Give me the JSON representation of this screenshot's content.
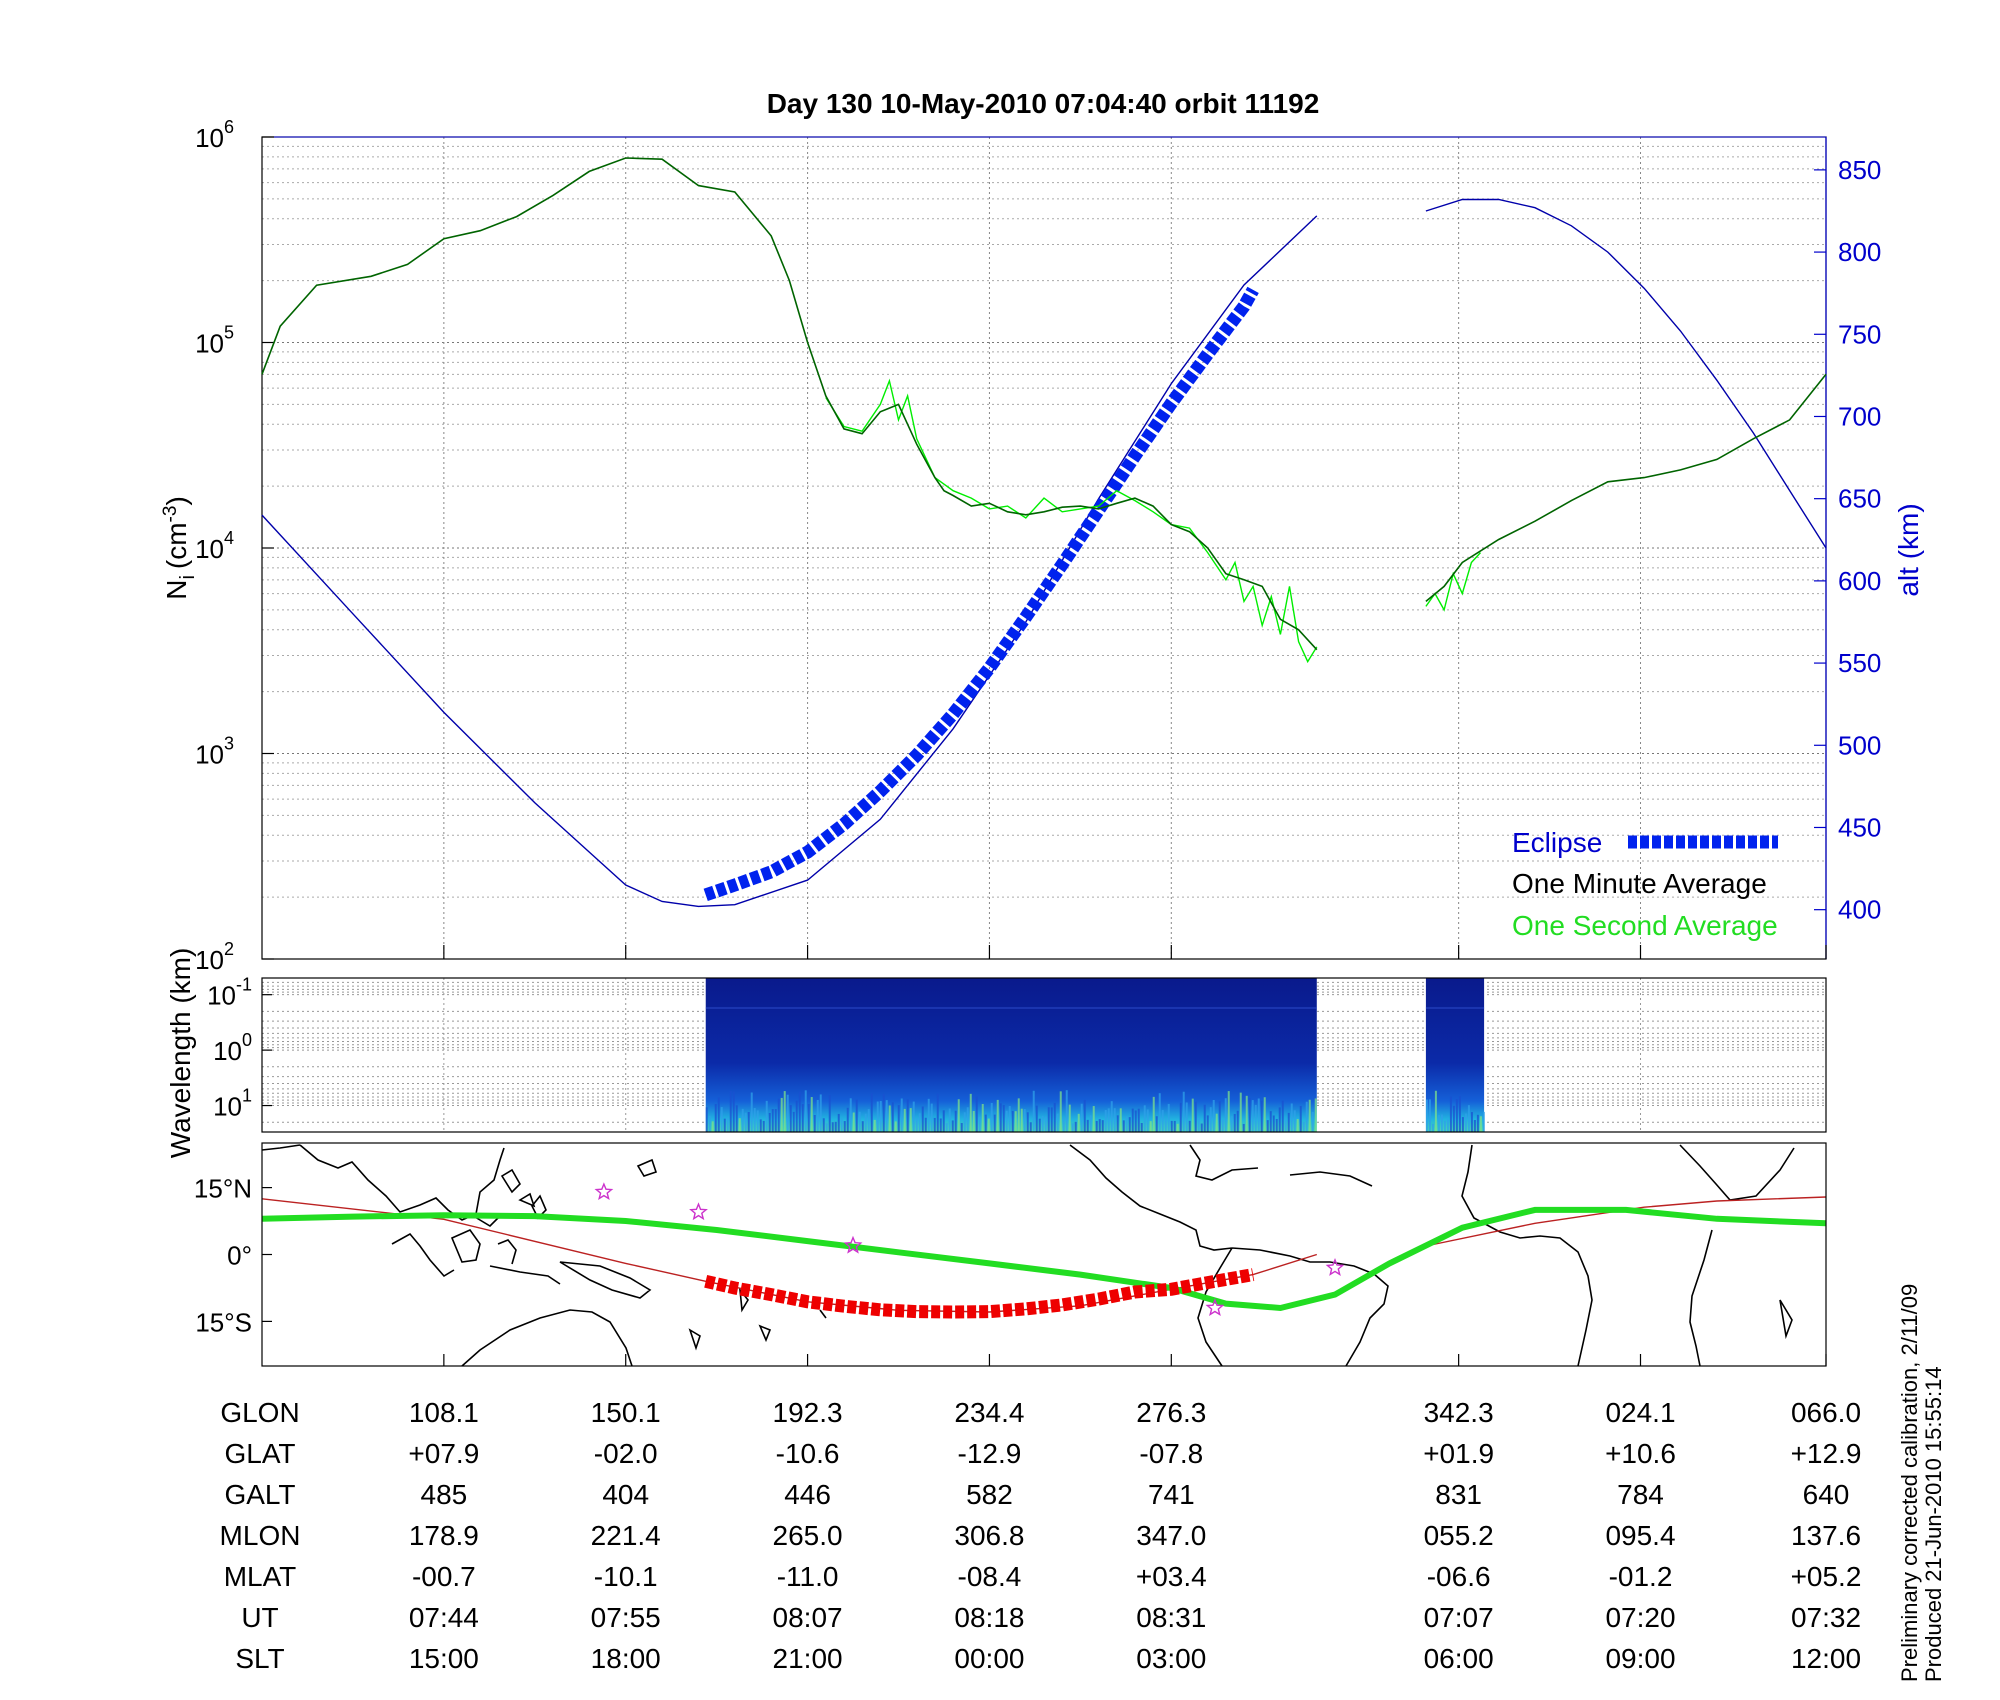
{
  "title": "Day 130  10-May-2010 07:04:40   orbit 11192",
  "side_note": {
    "line1": "Preliminary corrected calibration, 2/11/09",
    "line2": "Produced 21-Jun-2010 15:55:14"
  },
  "colors": {
    "minute_average": "#006400",
    "second_average": "#00ee00",
    "altitude": "#0000aa",
    "eclipse": "#0022ee",
    "eclipse_track": "#ee0000",
    "spectrogram_bg": "#0a1a8c",
    "stars": "#cc33cc"
  },
  "chart_data": [
    {
      "type": "line",
      "name": "ion-density-panel",
      "ylabel": "N",
      "ylabel_sub": "i",
      "ylabel_unit": "(cm",
      "ylabel_exp": "-3",
      "ylabel_close": ")",
      "ylabel_right": "alt (km)",
      "yscale": "log",
      "ylim": [
        100,
        1000000
      ],
      "y_ticks": [
        {
          "base": "10",
          "exp": "2",
          "value": 100
        },
        {
          "base": "10",
          "exp": "3",
          "value": 1000
        },
        {
          "base": "10",
          "exp": "4",
          "value": 10000
        },
        {
          "base": "10",
          "exp": "5",
          "value": 100000
        },
        {
          "base": "10",
          "exp": "6",
          "value": 1000000
        }
      ],
      "y2lim": [
        370,
        870
      ],
      "y2_ticks": [
        "400",
        "450",
        "500",
        "550",
        "600",
        "650",
        "700",
        "750",
        "800",
        "850"
      ],
      "xlim": [
        0,
        86
      ],
      "grid": true,
      "legend_position": "bottom-right",
      "legend": [
        {
          "label": "Eclipse",
          "color": "#0022ee"
        },
        {
          "label": "One Minute Average",
          "color": "#000000"
        },
        {
          "label": "One Second Average",
          "color": "#00ee00"
        }
      ],
      "series": [
        {
          "name": "One Minute Average",
          "segments": [
            {
              "x": [
                0,
                1,
                3,
                6,
                8,
                10,
                12,
                14,
                16,
                18,
                20,
                22,
                24,
                26,
                28,
                29,
                30,
                31,
                32,
                33,
                34,
                35,
                36,
                37,
                37.5,
                38,
                39,
                40,
                41,
                42,
                43,
                44,
                45,
                46,
                47,
                48,
                49,
                50,
                51,
                52,
                53,
                54,
                55,
                56,
                57,
                58
              ],
              "y": [
                70000,
                120000,
                190000,
                210000,
                240000,
                320000,
                350000,
                410000,
                520000,
                680000,
                790000,
                780000,
                580000,
                540000,
                330000,
                200000,
                100000,
                55000,
                38000,
                36000,
                46000,
                50000,
                32000,
                22000,
                19000,
                18000,
                16000,
                16500,
                15000,
                14500,
                15000,
                15800,
                16000,
                15500,
                16500,
                17500,
                16000,
                13000,
                12000,
                10000,
                7500,
                7000,
                6500,
                4500,
                4000,
                3200
              ]
            },
            {
              "x": [
                64,
                65,
                66,
                68,
                70,
                72,
                74,
                76,
                78,
                80,
                82,
                84,
                86
              ],
              "y": [
                5500,
                6500,
                8500,
                11000,
                13500,
                17000,
                21000,
                22000,
                24000,
                27000,
                34000,
                42000,
                70000
              ]
            }
          ]
        },
        {
          "name": "One Second Average",
          "segments": [
            {
              "x": [
                31,
                32,
                33,
                34,
                34.5,
                35,
                35.5,
                36,
                37,
                38,
                39,
                40,
                41,
                42,
                43,
                44,
                45,
                46,
                47,
                48,
                49,
                50,
                51,
                52,
                53,
                53.5,
                54,
                54.5,
                55,
                55.5,
                56,
                56.5,
                57,
                57.5,
                58
              ],
              "y": [
                54000,
                39000,
                37000,
                50000,
                65000,
                42000,
                55000,
                34000,
                22000,
                19000,
                17500,
                15500,
                16000,
                14000,
                17500,
                15000,
                15500,
                16000,
                19000,
                17000,
                15000,
                13000,
                12500,
                9500,
                7000,
                8500,
                5500,
                6500,
                4200,
                5800,
                3800,
                6500,
                3500,
                2800,
                3300
              ]
            },
            {
              "x": [
                64,
                64.5,
                65,
                65.5,
                66,
                66.5,
                67
              ],
              "y": [
                5200,
                6000,
                5000,
                7500,
                6000,
                8500,
                9500
              ]
            }
          ]
        },
        {
          "name": "Altitude",
          "axis": "right",
          "segments": [
            {
              "x": [
                0,
                5,
                10,
                15,
                18,
                20,
                22,
                24,
                26,
                30,
                34,
                38,
                42,
                46,
                50,
                54,
                58
              ],
              "y": [
                640,
                580,
                520,
                465,
                435,
                415,
                405,
                402,
                403,
                418,
                455,
                510,
                575,
                650,
                720,
                780,
                822
              ]
            },
            {
              "x": [
                64,
                66,
                68,
                70,
                72,
                74,
                76,
                78,
                80,
                82,
                84,
                86
              ],
              "y": [
                825,
                832,
                832,
                827,
                816,
                800,
                778,
                752,
                722,
                690,
                655,
                620
              ]
            }
          ]
        }
      ],
      "eclipse": {
        "x": [
          24.4,
          26,
          28,
          30,
          32,
          34,
          36,
          38,
          40,
          42,
          44,
          46,
          48,
          50,
          52,
          54,
          54.5
        ],
        "y": [
          409,
          415,
          423,
          435,
          452,
          472,
          494,
          519,
          547,
          578,
          610,
          643,
          676,
          708,
          738,
          767,
          777
        ]
      }
    },
    {
      "type": "heatmap",
      "name": "wavelength-spectrogram",
      "ylabel": "Wavelength (km)",
      "yscale": "log",
      "ylim": [
        30,
        0.05
      ],
      "y_ticks": [
        {
          "base": "10",
          "exp": "-1",
          "value": 0.1
        },
        {
          "base": "10",
          "exp": "0",
          "value": 1
        },
        {
          "base": "10",
          "exp": "1",
          "value": 10
        }
      ],
      "xlim": [
        0,
        86
      ],
      "data_ranges": [
        [
          24.4,
          58
        ],
        [
          64,
          67.2
        ]
      ]
    },
    {
      "type": "line",
      "name": "ground-track-map",
      "y_ticks": [
        "15°N",
        "0°",
        "15°S"
      ],
      "y_tick_values": [
        15,
        0,
        -15
      ],
      "ylim": [
        -25,
        25
      ],
      "xlim": [
        0,
        86
      ],
      "series": [
        {
          "name": "magnetic equator",
          "x": [
            0,
            5,
            10,
            15,
            20,
            25,
            30,
            35,
            40,
            45,
            50,
            53,
            56,
            59,
            62,
            66,
            70,
            75,
            80,
            86
          ],
          "y": [
            8,
            8.5,
            8.8,
            8.6,
            7.5,
            5.5,
            3,
            0.5,
            -2,
            -4.5,
            -7.5,
            -11,
            -12,
            -9,
            -2,
            6,
            10,
            10,
            8,
            7
          ]
        },
        {
          "name": "satellite track",
          "segments": [
            {
              "x": [
                0,
                10,
                20,
                24.4,
                30,
                35,
                40,
                45,
                50,
                54.5,
                58
              ],
              "y": [
                12.5,
                7.9,
                -2,
                -6,
                -10.6,
                -12.5,
                -12.9,
                -11.5,
                -7.8,
                -4.5,
                0
              ]
            },
            {
              "x": [
                64,
                70,
                76,
                80,
                86
              ],
              "y": [
                1.9,
                7,
                10.6,
                12,
                12.9
              ]
            }
          ]
        }
      ],
      "eclipse_track": {
        "x": [
          24.4,
          26,
          28,
          30,
          32,
          34,
          36,
          38,
          40,
          42,
          44,
          46,
          48,
          50,
          52,
          54.5
        ],
        "y": [
          -6,
          -7.5,
          -9,
          -10.6,
          -11.6,
          -12.4,
          -12.8,
          -12.9,
          -12.8,
          -12.2,
          -11.3,
          -10,
          -8.4,
          -7.8,
          -6.3,
          -4.5
        ]
      },
      "stars": {
        "x": [
          18.8,
          24,
          32.5,
          52.4,
          59
        ],
        "y": [
          14,
          9.5,
          2,
          -12,
          -3
        ]
      }
    }
  ],
  "orbit_table": {
    "x_positions": [
      10,
      20,
      30,
      40,
      50,
      65.8,
      75.8,
      86
    ],
    "rows": [
      {
        "label": "GLON",
        "values": [
          "108.1",
          "150.1",
          "192.3",
          "234.4",
          "276.3",
          "342.3",
          "024.1",
          "066.0"
        ]
      },
      {
        "label": "GLAT",
        "values": [
          "+07.9",
          "-02.0",
          "-10.6",
          "-12.9",
          "-07.8",
          "+01.9",
          "+10.6",
          "+12.9"
        ]
      },
      {
        "label": "GALT",
        "values": [
          "485",
          "404",
          "446",
          "582",
          "741",
          "831",
          "784",
          "640"
        ]
      },
      {
        "label": "MLON",
        "values": [
          "178.9",
          "221.4",
          "265.0",
          "306.8",
          "347.0",
          "055.2",
          "095.4",
          "137.6"
        ]
      },
      {
        "label": "MLAT",
        "values": [
          "-00.7",
          "-10.1",
          "-11.0",
          "-08.4",
          "+03.4",
          "-06.6",
          "-01.2",
          "+05.2"
        ]
      },
      {
        "label": "UT",
        "values": [
          "07:44",
          "07:55",
          "08:07",
          "08:18",
          "08:31",
          "07:07",
          "07:20",
          "07:32"
        ]
      },
      {
        "label": "SLT",
        "values": [
          "15:00",
          "18:00",
          "21:00",
          "00:00",
          "03:00",
          "06:00",
          "09:00",
          "12:00"
        ]
      }
    ]
  }
}
